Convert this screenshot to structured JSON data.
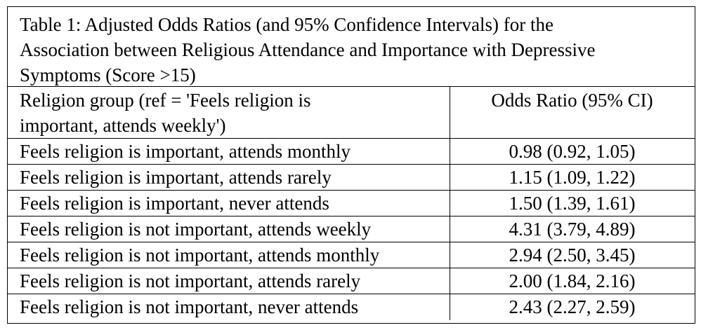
{
  "table": {
    "caption_line1": "Table 1: Adjusted Odds Ratios (and 95% Confidence Intervals) for the",
    "caption_line2": "Association between Religious Attendance and Importance with Depressive",
    "caption_line3": "Symptoms (Score >15)",
    "header": {
      "col1_line1": "Religion group (ref = 'Feels religion is",
      "col1_line2": "important, attends weekly')",
      "col2": "Odds Ratio (95% CI)"
    },
    "rows": [
      {
        "group": "Feels religion is important, attends monthly",
        "or": "0.98 (0.92, 1.05)"
      },
      {
        "group": "Feels religion is important, attends rarely",
        "or": "1.15 (1.09, 1.22)"
      },
      {
        "group": "Feels religion is important, never attends",
        "or": "1.50 (1.39, 1.61)"
      },
      {
        "group": "Feels religion is not important, attends weekly",
        "or": "4.31 (3.79, 4.89)"
      },
      {
        "group": "Feels religion is not important, attends monthly",
        "or": "2.94 (2.50, 3.45)"
      },
      {
        "group": "Feels religion is not important, attends rarely",
        "or": "2.00 (1.84, 2.16)"
      },
      {
        "group": "Feels religion is not important, never attends",
        "or": "2.43 (2.27, 2.59)"
      }
    ]
  }
}
